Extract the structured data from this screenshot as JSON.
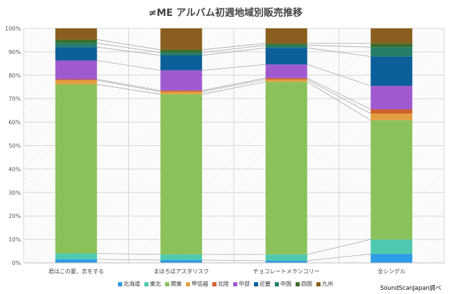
{
  "chart_data": {
    "type": "bar",
    "stacked": "percent",
    "title": "≠ME アルバム初週地域別販売推移",
    "categories": [
      "君はこの夏、恋をする",
      "まほろばアスタリスク",
      "チョコレートメランコリー",
      "全シングル"
    ],
    "ylim": [
      0,
      100
    ],
    "yticks": [
      "0%",
      "10%",
      "20%",
      "30%",
      "40%",
      "50%",
      "60%",
      "70%",
      "80%",
      "90%",
      "100%"
    ],
    "grid": true,
    "legend": "bottom",
    "series": [
      {
        "name": "北海道",
        "color": "#2e9be6",
        "values": [
          1.5,
          1.2,
          0.9,
          3.8
        ]
      },
      {
        "name": "東北",
        "color": "#4ec9b0",
        "values": [
          2.5,
          2.4,
          2.7,
          6.2
        ]
      },
      {
        "name": "関東",
        "color": "#8bc15a",
        "values": [
          72.1,
          68.3,
          73.6,
          50.8
        ]
      },
      {
        "name": "甲信越",
        "color": "#e0a040",
        "values": [
          1.8,
          1.1,
          1.0,
          2.9
        ]
      },
      {
        "name": "北陸",
        "color": "#d0602a",
        "values": [
          0.4,
          0.5,
          0.6,
          1.8
        ]
      },
      {
        "name": "中部",
        "color": "#a05ad0",
        "values": [
          8.0,
          8.6,
          5.8,
          10.0
        ]
      },
      {
        "name": "近畿",
        "color": "#0d5f9a",
        "values": [
          5.7,
          6.4,
          7.1,
          12.5
        ]
      },
      {
        "name": "中国",
        "color": "#267d6a",
        "values": [
          1.7,
          1.2,
          1.1,
          4.0
        ]
      },
      {
        "name": "四国",
        "color": "#3a6e2a",
        "values": [
          1.5,
          1.2,
          0.8,
          1.6
        ]
      },
      {
        "name": "九州",
        "color": "#8a5e1e",
        "values": [
          4.8,
          9.1,
          6.4,
          6.4
        ]
      }
    ]
  },
  "source": "SoundScanJapan調べ"
}
